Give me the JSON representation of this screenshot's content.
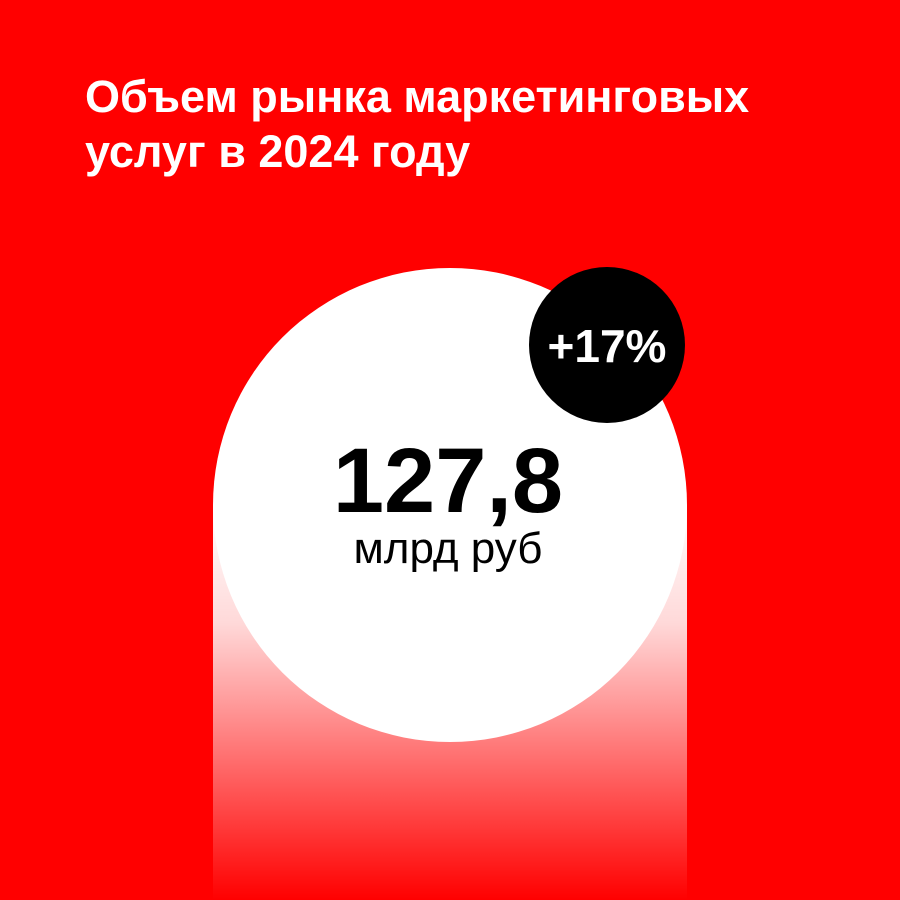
{
  "title": {
    "lines": [
      "Объем рынка маркетинговых",
      "услуг в 2024 году"
    ]
  },
  "main_value": {
    "value": "127,8",
    "unit": "млрд руб"
  },
  "badge": {
    "text": "+17%"
  }
}
